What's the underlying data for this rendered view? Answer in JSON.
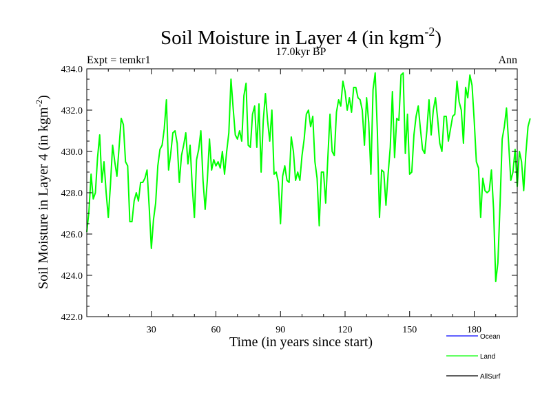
{
  "chart_data": {
    "type": "line",
    "title_main": "Soil Moisture in Layer 4 (in kgm",
    "title_sup": "-2",
    "title_close": ")",
    "subtitle_left": "Expt = temkr1",
    "subtitle_center": "17.0kyr BP",
    "subtitle_right": "Ann",
    "xlabel": "Time (in years since start)",
    "ylabel_main": "Soil Moisture in Layer 4 (in kgm",
    "ylabel_sup": "-2",
    "ylabel_close": ")",
    "xlim": [
      0,
      200
    ],
    "ylim": [
      422,
      434
    ],
    "x_ticks": [
      30,
      60,
      90,
      120,
      150,
      180
    ],
    "y_ticks": [
      422,
      424,
      426,
      428,
      430,
      432,
      434
    ],
    "y_tick_labels": [
      "422.0",
      "424.0",
      "426.0",
      "428.0",
      "430.0",
      "432.0",
      "434.0"
    ],
    "legend": [
      {
        "name": "Ocean",
        "color": "#0000ff"
      },
      {
        "name": "Land",
        "color": "#00ff00"
      },
      {
        "name": "AllSurf",
        "color": "#000000"
      }
    ],
    "series": [
      {
        "name": "Land",
        "color": "#00ff00",
        "x_start": 0,
        "x_step": 1,
        "values": [
          426.1,
          427.1,
          428.9,
          427.7,
          428.0,
          429.7,
          430.8,
          428.5,
          429.5,
          428.0,
          426.8,
          428.4,
          430.3,
          429.5,
          428.8,
          430.2,
          431.6,
          431.3,
          429.5,
          429.3,
          426.6,
          426.6,
          427.6,
          428.0,
          427.6,
          428.5,
          428.5,
          428.7,
          429.1,
          427.3,
          425.3,
          426.7,
          427.5,
          429.3,
          430.1,
          430.3,
          431.1,
          432.5,
          429.1,
          429.9,
          430.9,
          431.0,
          430.4,
          428.5,
          429.8,
          430.3,
          430.9,
          429.4,
          430.3,
          428.3,
          426.8,
          429.6,
          430.1,
          431.0,
          428.6,
          427.2,
          428.6,
          430.6,
          429.1,
          429.6,
          429.3,
          429.5,
          429.2,
          430.0,
          428.9,
          430.0,
          430.9,
          433.5,
          432.1,
          430.8,
          430.6,
          431.0,
          430.5,
          432.7,
          433.3,
          430.3,
          430.2,
          431.8,
          432.2,
          430.2,
          432.3,
          429.0,
          431.5,
          432.8,
          431.5,
          430.5,
          432.0,
          428.9,
          429.0,
          428.5,
          426.5,
          428.8,
          429.3,
          428.6,
          428.5,
          430.7,
          430.0,
          428.6,
          429.0,
          428.6,
          429.8,
          430.6,
          431.8,
          432.0,
          431.2,
          431.7,
          429.5,
          428.7,
          426.4,
          429.0,
          429.0,
          427.5,
          429.7,
          431.8,
          430.0,
          429.8,
          431.9,
          432.5,
          432.2,
          433.4,
          432.9,
          432.0,
          432.6,
          431.9,
          433.1,
          433.1,
          432.6,
          432.5,
          432.0,
          430.3,
          432.6,
          431.4,
          428.9,
          433.0,
          433.8,
          431.0,
          426.8,
          429.1,
          429.0,
          427.4,
          428.9,
          430.2,
          432.9,
          429.7,
          431.6,
          431.5,
          433.7,
          433.8,
          429.9,
          431.8,
          428.9,
          429.0,
          430.8,
          431.7,
          432.2,
          431.1,
          430.1,
          429.9,
          431.0,
          432.5,
          430.8,
          432.0,
          432.6,
          431.6,
          430.4,
          430.0,
          431.7,
          431.7,
          430.5,
          431.1,
          431.7,
          431.8,
          433.4,
          432.4,
          432.0,
          430.4,
          433.1,
          432.6,
          433.7,
          433.2,
          431.5,
          429.5,
          429.2,
          426.8,
          428.7,
          428.1,
          428.0,
          428.1,
          429.1,
          427.2,
          423.7,
          424.6,
          427.4,
          430.6,
          431.2,
          432.1,
          430.4,
          428.6,
          429.0,
          430.1,
          428.3,
          430.0,
          429.5,
          428.1,
          429.9,
          431.2,
          431.6
        ]
      }
    ]
  }
}
